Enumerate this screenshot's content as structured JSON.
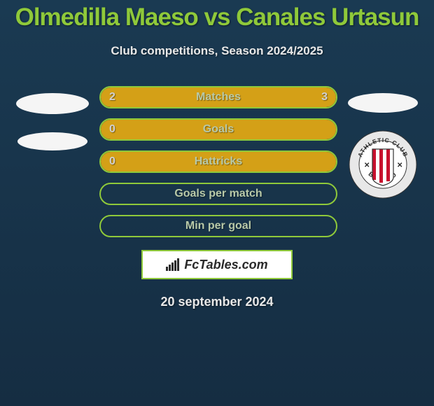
{
  "title": "Olmedilla Maeso vs Canales Urtasun",
  "subtitle": "Club competitions, Season 2024/2025",
  "date": "20 september 2024",
  "brand": "FcTables.com",
  "colors": {
    "accent": "#8fc93a",
    "bar_fill": "#d4a017",
    "background_top": "#1a3a52",
    "background_bottom": "#152d42",
    "ellipse": "#f5f5f5",
    "text_light": "#e8e8e8",
    "bar_label": "#b8c9a8"
  },
  "bars": [
    {
      "label": "Matches",
      "left": "2",
      "right": "3",
      "left_pct": 40,
      "right_pct": 60
    },
    {
      "label": "Goals",
      "left": "0",
      "right": "",
      "left_pct": 100,
      "right_pct": 0
    },
    {
      "label": "Hattricks",
      "left": "0",
      "right": "",
      "left_pct": 100,
      "right_pct": 0
    },
    {
      "label": "Goals per match",
      "left": "",
      "right": "",
      "left_pct": 0,
      "right_pct": 0
    },
    {
      "label": "Min per goal",
      "left": "",
      "right": "",
      "left_pct": 0,
      "right_pct": 0
    }
  ],
  "badge": {
    "outer_text_top": "ATHLETIC CLUB",
    "outer_text_bottom": "BILBAO",
    "stripe_red": "#c8102e",
    "stripe_white": "#ffffff",
    "ring_bg": "#e8e8e8",
    "ring_text": "#2a2a2a"
  }
}
